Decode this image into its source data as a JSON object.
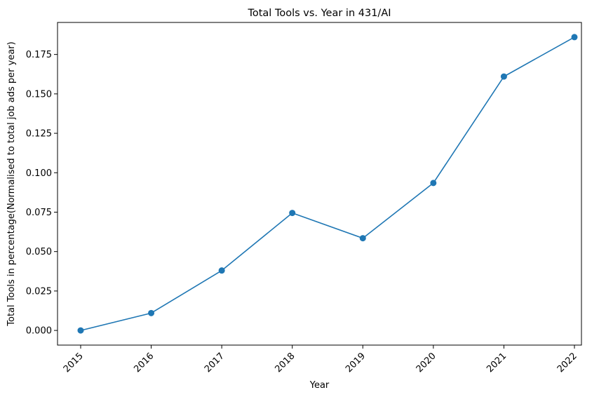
{
  "chart_data": {
    "type": "line",
    "title": "Total Tools vs. Year in 431/AI",
    "xlabel": "Year",
    "ylabel": "Total Tools in percentage(Normalised to total job ads per year)",
    "categories": [
      "2015",
      "2016",
      "2017",
      "2018",
      "2019",
      "2020",
      "2021",
      "2022"
    ],
    "series": [
      {
        "name": "Total Tools",
        "values": [
          0.0,
          0.011,
          0.038,
          0.0745,
          0.0585,
          0.0935,
          0.161,
          0.186
        ]
      }
    ],
    "ylim": [
      -0.0093,
      0.1953
    ],
    "yticks": [
      0.0,
      0.025,
      0.05,
      0.075,
      0.1,
      0.125,
      0.15,
      0.175
    ],
    "ytick_labels": [
      "0.000",
      "0.025",
      "0.050",
      "0.075",
      "0.100",
      "0.125",
      "0.150",
      "0.175"
    ],
    "grid": false,
    "legend": "none",
    "line_color": "#1f77b4",
    "marker": "circle",
    "xtick_rotation": 45
  }
}
